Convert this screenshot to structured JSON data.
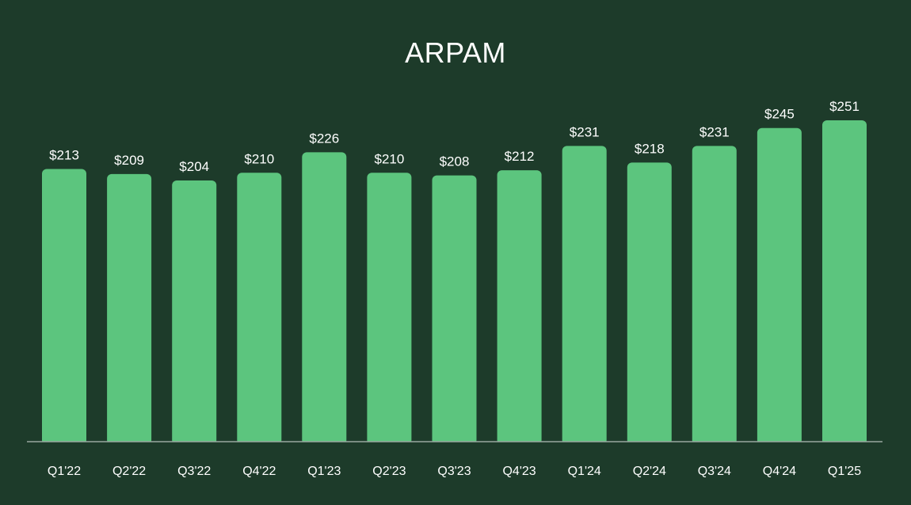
{
  "colors": {
    "background": "#1d3b2a",
    "bar": "#5cc57e",
    "axis": "#9aa8a0",
    "text": "#ffffff"
  },
  "chart_data": {
    "type": "bar",
    "title": "ARPAM",
    "xlabel": "",
    "ylabel": "",
    "grid": false,
    "legend": "none",
    "ylim": [
      0,
      251
    ],
    "categories": [
      "Q1'22",
      "Q2'22",
      "Q3'22",
      "Q4'22",
      "Q1'23",
      "Q2'23",
      "Q3'23",
      "Q4'23",
      "Q1'24",
      "Q2'24",
      "Q3'24",
      "Q4'24",
      "Q1'25"
    ],
    "values": [
      213,
      209,
      204,
      210,
      226,
      210,
      208,
      212,
      231,
      218,
      231,
      245,
      251
    ],
    "data_labels": [
      "$213",
      "$209",
      "$204",
      "$210",
      "$226",
      "$210",
      "$208",
      "$212",
      "$231",
      "$218",
      "$231",
      "$245",
      "$251"
    ]
  }
}
